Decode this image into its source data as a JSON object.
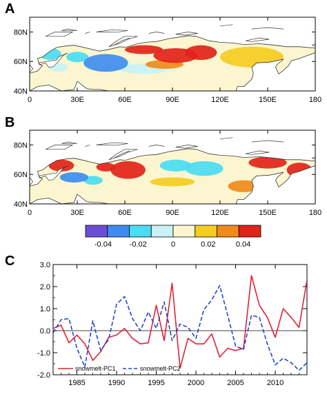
{
  "panels": [
    {
      "letter": "A"
    },
    {
      "letter": "B"
    },
    {
      "letter": "C"
    }
  ],
  "colors": {
    "scale": [
      "#6a4fd6",
      "#3f8cf0",
      "#49dcf2",
      "#c9f1f7",
      "#fbf6cf",
      "#f4cc22",
      "#f08a1a",
      "#e2231a"
    ],
    "pc1": "#e02035",
    "pc2": "#2445c8",
    "land": "#ffffff",
    "coast": "#333333"
  },
  "chart_data": [
    {
      "type": "heatmap",
      "panel": "A",
      "xticks": [
        "0",
        "30E",
        "60E",
        "90E",
        "120E",
        "150E",
        "180"
      ],
      "yticks": [
        "80N",
        "60N",
        "40N"
      ],
      "xlim": [
        0,
        180
      ],
      "ylim": [
        40,
        90
      ],
      "anomaly_blobs": [
        {
          "lon": 48,
          "lat": 59,
          "rlon": 14,
          "rlat": 6,
          "value": -0.038
        },
        {
          "lon": 30,
          "lat": 63,
          "rlon": 7,
          "rlat": 3.5,
          "value": -0.03
        },
        {
          "lon": 13,
          "lat": 65,
          "rlon": 7,
          "rlat": 4,
          "value": -0.026
        },
        {
          "lon": 18,
          "lat": 56,
          "rlon": 6,
          "rlat": 3,
          "value": -0.014
        },
        {
          "lon": 72,
          "lat": 55,
          "rlon": 16,
          "rlat": 3.5,
          "value": -0.014
        },
        {
          "lon": 92,
          "lat": 64,
          "rlon": 14,
          "rlat": 5,
          "value": 0.045
        },
        {
          "lon": 72,
          "lat": 68,
          "rlon": 12,
          "rlat": 3,
          "value": 0.03
        },
        {
          "lon": 108,
          "lat": 66,
          "rlon": 10,
          "rlat": 5,
          "value": 0.03
        },
        {
          "lon": 85,
          "lat": 58,
          "rlon": 12,
          "rlat": 3,
          "value": 0.016
        },
        {
          "lon": 140,
          "lat": 63,
          "rlon": 20,
          "rlat": 7,
          "value": 0.004
        }
      ]
    },
    {
      "type": "heatmap",
      "panel": "B",
      "xticks": [
        "0",
        "30E",
        "60E",
        "90E",
        "120E",
        "150E",
        "180"
      ],
      "yticks": [
        "80N",
        "60N",
        "40N"
      ],
      "xlim": [
        0,
        180
      ],
      "ylim": [
        40,
        90
      ],
      "anomaly_blobs": [
        {
          "lon": 62,
          "lat": 63,
          "rlon": 11,
          "rlat": 6,
          "value": 0.048
        },
        {
          "lon": 48,
          "lat": 65,
          "rlon": 6,
          "rlat": 3,
          "value": 0.03
        },
        {
          "lon": 20,
          "lat": 66,
          "rlon": 8,
          "rlat": 4,
          "value": 0.026
        },
        {
          "lon": 28,
          "lat": 58,
          "rlon": 9,
          "rlat": 3.5,
          "value": -0.036
        },
        {
          "lon": 40,
          "lat": 56,
          "rlon": 6,
          "rlat": 3,
          "value": -0.03
        },
        {
          "lon": 92,
          "lat": 66,
          "rlon": 10,
          "rlat": 4,
          "value": -0.03
        },
        {
          "lon": 110,
          "lat": 64,
          "rlon": 12,
          "rlat": 5,
          "value": -0.024
        },
        {
          "lon": 150,
          "lat": 68,
          "rlon": 12,
          "rlat": 4,
          "value": 0.024
        },
        {
          "lon": 170,
          "lat": 63,
          "rlon": 8,
          "rlat": 5,
          "value": 0.02
        },
        {
          "lon": 135,
          "lat": 52,
          "rlon": 10,
          "rlat": 4,
          "value": 0.012
        },
        {
          "lon": 90,
          "lat": 55,
          "rlon": 14,
          "rlat": 3,
          "value": 0.006
        }
      ]
    },
    {
      "type": "colorbar",
      "boundaries": [
        -0.05,
        -0.04,
        -0.03,
        -0.02,
        -0.01,
        0.0,
        0.01,
        0.02,
        0.03,
        0.04,
        0.05
      ],
      "tick_labels": [
        "-0.04",
        "-0.02",
        "0",
        "0.02",
        "0.04"
      ]
    },
    {
      "type": "line",
      "panel": "C",
      "x": [
        1982,
        1983,
        1984,
        1985,
        1986,
        1987,
        1988,
        1989,
        1990,
        1991,
        1992,
        1993,
        1994,
        1995,
        1996,
        1997,
        1998,
        1999,
        2000,
        2001,
        2002,
        2003,
        2004,
        2005,
        2006,
        2007,
        2008,
        2009,
        2010,
        2011,
        2012,
        2013,
        2014
      ],
      "series": [
        {
          "name": "snowmelt-PC1",
          "style": "solid",
          "values": [
            0.1,
            0.25,
            -0.55,
            -0.2,
            -0.6,
            -1.35,
            -0.95,
            -0.3,
            -0.2,
            0.1,
            -0.35,
            -0.6,
            -0.55,
            1.15,
            -0.45,
            2.15,
            -1.7,
            -0.35,
            -0.6,
            -0.6,
            -0.15,
            -1.2,
            -0.8,
            -0.9,
            -0.8,
            2.5,
            1.15,
            0.6,
            -0.3,
            1.0,
            0.6,
            0.15,
            2.3
          ]
        },
        {
          "name": "snowmelt-PC2",
          "style": "dashed",
          "values": [
            -0.1,
            0.5,
            0.55,
            -0.8,
            -1.65,
            0.45,
            -0.9,
            -0.4,
            1.2,
            1.55,
            0.55,
            0.0,
            0.85,
            0.1,
            1.3,
            -0.45,
            0.3,
            0.15,
            -0.35,
            0.95,
            1.4,
            2.05,
            0.7,
            -0.7,
            -0.85,
            0.7,
            0.6,
            -0.6,
            -1.55,
            -1.25,
            -1.45,
            -1.8,
            -1.45
          ]
        }
      ],
      "xticks": [
        "1985",
        "1990",
        "1995",
        "2000",
        "2005",
        "2010"
      ],
      "yticks": [
        "3.0",
        "2.0",
        "1.0",
        "0.0",
        "-1.0",
        "-2.0"
      ],
      "xlim": [
        1982,
        2014
      ],
      "ylim": [
        -2.0,
        3.0
      ],
      "reference_line": 0
    }
  ]
}
